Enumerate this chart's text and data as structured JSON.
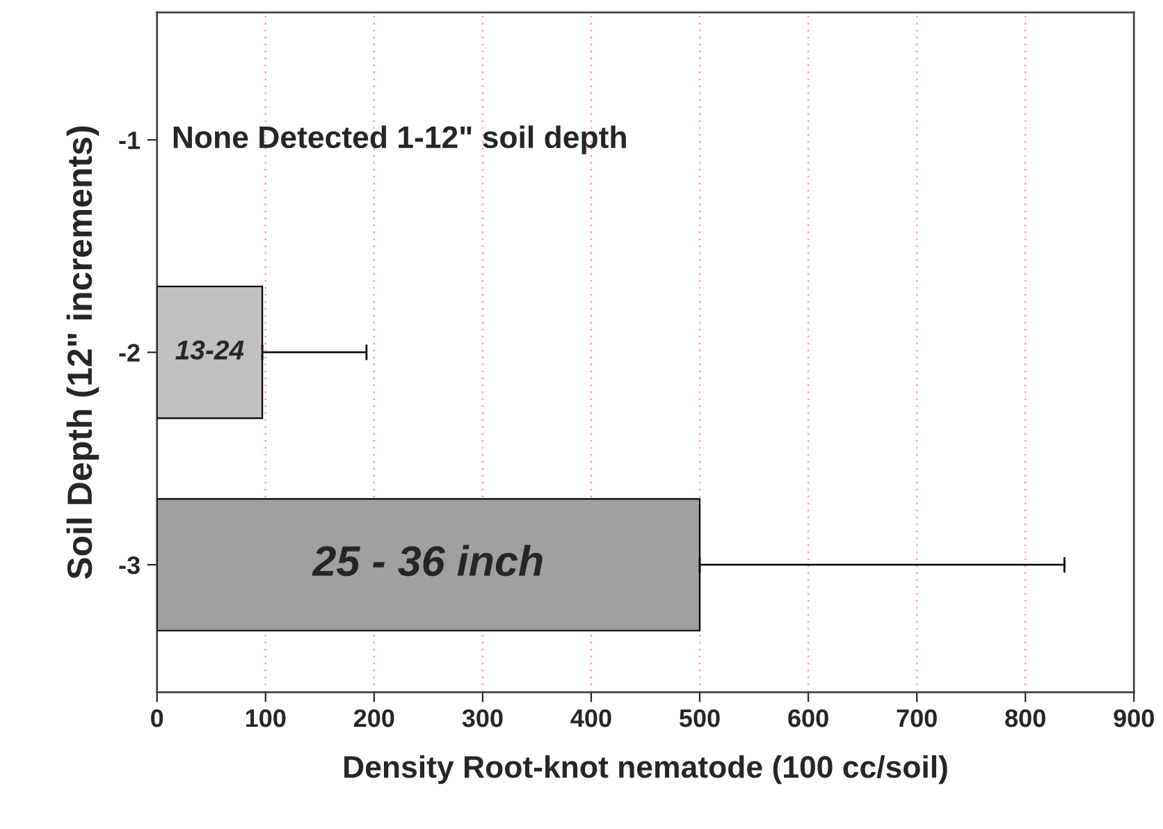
{
  "chart_data": {
    "type": "bar",
    "orientation": "horizontal",
    "xlabel": "Density Root-knot nematode (100 cc/soil)",
    "ylabel": "Soil Depth (12\" increments)",
    "categories": [
      "-1",
      "-2",
      "-3"
    ],
    "values": [
      0,
      97,
      500
    ],
    "colors": [
      "#c0c0c0",
      "#c0c0c0",
      "#a0a0a0"
    ],
    "errors": [
      null,
      [
        97,
        193
      ],
      [
        500,
        836
      ]
    ],
    "xlim": [
      0,
      900
    ],
    "xticks": [
      0,
      100,
      200,
      300,
      400,
      500,
      600,
      700,
      800,
      900
    ],
    "grid": "x",
    "annotations": [
      "None Detected 1-12\" soil depth",
      "13-24",
      "25 - 36 inch"
    ]
  }
}
